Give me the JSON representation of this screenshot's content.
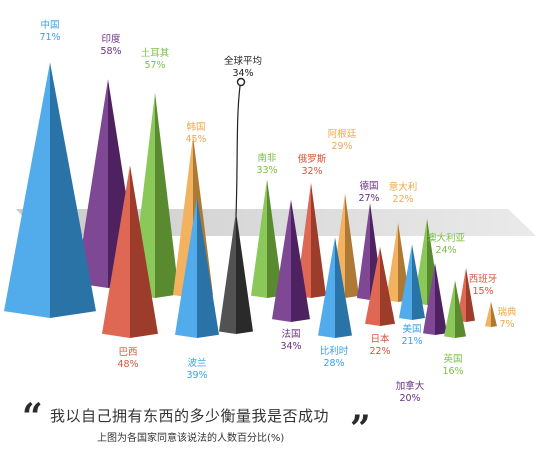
{
  "chart_data": {
    "type": "bar",
    "title": "我以自己拥有东西的多少衡量我是否成功",
    "subtitle": "上图为各国家同意该说法的人数百分比(%)",
    "average": {
      "label": "全球平均",
      "value": 34
    },
    "categories": [
      "中国",
      "印度",
      "巴西",
      "土耳其",
      "韩国",
      "波兰",
      "南非",
      "法国",
      "俄罗斯",
      "比利时",
      "阿根廷",
      "德国",
      "日本",
      "意大利",
      "美国",
      "加拿大",
      "澳大利亚",
      "英国",
      "西班牙",
      "瑞典"
    ],
    "values": [
      71,
      58,
      48,
      57,
      45,
      39,
      33,
      34,
      32,
      28,
      29,
      27,
      22,
      22,
      21,
      20,
      24,
      16,
      15,
      7
    ],
    "unit": "%",
    "ylim": [
      0,
      80
    ],
    "colors": {
      "中国": "#3aa0e8",
      "印度": "#6c2f86",
      "巴西": "#d9533b",
      "土耳其": "#7bc043",
      "韩国": "#f0a84a",
      "波兰": "#3aa0e8",
      "南非": "#7bc043",
      "法国": "#6c2f86",
      "俄罗斯": "#d9533b",
      "比利时": "#3aa0e8",
      "阿根廷": "#f0a84a",
      "德国": "#6c2f86",
      "日本": "#d9533b",
      "意大利": "#f0a84a",
      "美国": "#3aa0e8",
      "加拿大": "#6c2f86",
      "澳大利亚": "#7bc043",
      "英国": "#7bc043",
      "西班牙": "#d9533b",
      "瑞典": "#f0a84a",
      "average": "#3a3a3a"
    }
  }
}
